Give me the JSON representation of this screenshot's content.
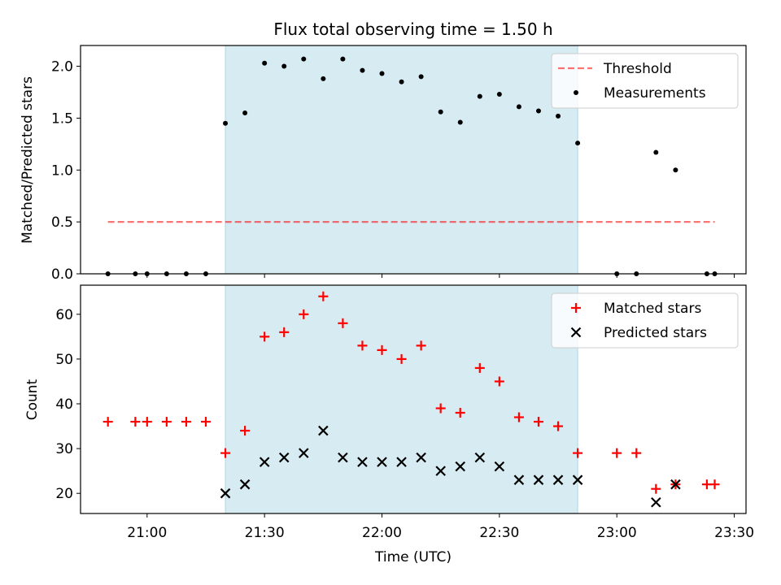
{
  "chart_data": [
    {
      "type": "scatter",
      "title": "Flux total observing time = 1.50 h",
      "xlabel": "",
      "ylabel": "Matched/Predicted stars",
      "xlim": [
        "20:43",
        "23:33"
      ],
      "ylim": [
        0,
        2.2
      ],
      "yticks": [
        "0.0",
        "0.5",
        "1.0",
        "1.5",
        "2.0"
      ],
      "grid": false,
      "legend": "top-right",
      "highlight_span": {
        "start": "21:20",
        "end": "22:50",
        "color": "#add8e6"
      },
      "series": [
        {
          "name": "Threshold",
          "kind": "dashed-line",
          "color": "#ff0000",
          "points": [
            {
              "x": "20:50",
              "y": 0.5
            },
            {
              "x": "23:25",
              "y": 0.5
            }
          ]
        },
        {
          "name": "Measurements",
          "kind": "dot",
          "color": "#000000",
          "points": [
            {
              "x": "20:50",
              "y": 0
            },
            {
              "x": "20:57",
              "y": 0
            },
            {
              "x": "21:00",
              "y": 0
            },
            {
              "x": "21:05",
              "y": 0
            },
            {
              "x": "21:10",
              "y": 0
            },
            {
              "x": "21:15",
              "y": 0
            },
            {
              "x": "21:20",
              "y": 1.45
            },
            {
              "x": "21:25",
              "y": 1.55
            },
            {
              "x": "21:30",
              "y": 2.03
            },
            {
              "x": "21:35",
              "y": 2.0
            },
            {
              "x": "21:40",
              "y": 2.07
            },
            {
              "x": "21:45",
              "y": 1.88
            },
            {
              "x": "21:50",
              "y": 2.07
            },
            {
              "x": "21:55",
              "y": 1.96
            },
            {
              "x": "22:00",
              "y": 1.93
            },
            {
              "x": "22:05",
              "y": 1.85
            },
            {
              "x": "22:10",
              "y": 1.9
            },
            {
              "x": "22:15",
              "y": 1.56
            },
            {
              "x": "22:20",
              "y": 1.46
            },
            {
              "x": "22:25",
              "y": 1.71
            },
            {
              "x": "22:30",
              "y": 1.73
            },
            {
              "x": "22:35",
              "y": 1.61
            },
            {
              "x": "22:40",
              "y": 1.57
            },
            {
              "x": "22:45",
              "y": 1.52
            },
            {
              "x": "22:50",
              "y": 1.26
            },
            {
              "x": "23:00",
              "y": 0
            },
            {
              "x": "23:05",
              "y": 0
            },
            {
              "x": "23:10",
              "y": 1.17
            },
            {
              "x": "23:15",
              "y": 1.0
            },
            {
              "x": "23:23",
              "y": 0
            },
            {
              "x": "23:25",
              "y": 0
            }
          ]
        }
      ]
    },
    {
      "type": "scatter",
      "title": "",
      "xlabel": "Time (UTC)",
      "ylabel": "Count",
      "xlim": [
        "20:43",
        "23:33"
      ],
      "ylim": [
        15.5,
        66.5
      ],
      "xticks": [
        "21:00",
        "21:30",
        "22:00",
        "22:30",
        "23:00",
        "23:30"
      ],
      "yticks": [
        "20",
        "30",
        "40",
        "50",
        "60"
      ],
      "grid": false,
      "legend": "top-right",
      "highlight_span": {
        "start": "21:20",
        "end": "22:50",
        "color": "#add8e6"
      },
      "series": [
        {
          "name": "Matched stars",
          "kind": "plus",
          "color": "#ff0000",
          "points": [
            {
              "x": "20:50",
              "y": 36
            },
            {
              "x": "20:57",
              "y": 36
            },
            {
              "x": "21:00",
              "y": 36
            },
            {
              "x": "21:05",
              "y": 36
            },
            {
              "x": "21:10",
              "y": 36
            },
            {
              "x": "21:15",
              "y": 36
            },
            {
              "x": "21:20",
              "y": 29
            },
            {
              "x": "21:25",
              "y": 34
            },
            {
              "x": "21:30",
              "y": 55
            },
            {
              "x": "21:35",
              "y": 56
            },
            {
              "x": "21:40",
              "y": 60
            },
            {
              "x": "21:45",
              "y": 64
            },
            {
              "x": "21:50",
              "y": 58
            },
            {
              "x": "21:55",
              "y": 53
            },
            {
              "x": "22:00",
              "y": 52
            },
            {
              "x": "22:05",
              "y": 50
            },
            {
              "x": "22:10",
              "y": 53
            },
            {
              "x": "22:15",
              "y": 39
            },
            {
              "x": "22:20",
              "y": 38
            },
            {
              "x": "22:25",
              "y": 48
            },
            {
              "x": "22:30",
              "y": 45
            },
            {
              "x": "22:35",
              "y": 37
            },
            {
              "x": "22:40",
              "y": 36
            },
            {
              "x": "22:45",
              "y": 35
            },
            {
              "x": "22:50",
              "y": 29
            },
            {
              "x": "23:00",
              "y": 29
            },
            {
              "x": "23:05",
              "y": 29
            },
            {
              "x": "23:10",
              "y": 21
            },
            {
              "x": "23:15",
              "y": 22
            },
            {
              "x": "23:23",
              "y": 22
            },
            {
              "x": "23:25",
              "y": 22
            }
          ]
        },
        {
          "name": "Predicted stars",
          "kind": "x",
          "color": "#000000",
          "points": [
            {
              "x": "21:20",
              "y": 20
            },
            {
              "x": "21:25",
              "y": 22
            },
            {
              "x": "21:30",
              "y": 27
            },
            {
              "x": "21:35",
              "y": 28
            },
            {
              "x": "21:40",
              "y": 29
            },
            {
              "x": "21:45",
              "y": 34
            },
            {
              "x": "21:50",
              "y": 28
            },
            {
              "x": "21:55",
              "y": 27
            },
            {
              "x": "22:00",
              "y": 27
            },
            {
              "x": "22:05",
              "y": 27
            },
            {
              "x": "22:10",
              "y": 28
            },
            {
              "x": "22:15",
              "y": 25
            },
            {
              "x": "22:20",
              "y": 26
            },
            {
              "x": "22:25",
              "y": 28
            },
            {
              "x": "22:30",
              "y": 26
            },
            {
              "x": "22:35",
              "y": 23
            },
            {
              "x": "22:40",
              "y": 23
            },
            {
              "x": "22:45",
              "y": 23
            },
            {
              "x": "22:50",
              "y": 23
            },
            {
              "x": "23:10",
              "y": 18
            },
            {
              "x": "23:15",
              "y": 22
            }
          ]
        }
      ]
    }
  ]
}
